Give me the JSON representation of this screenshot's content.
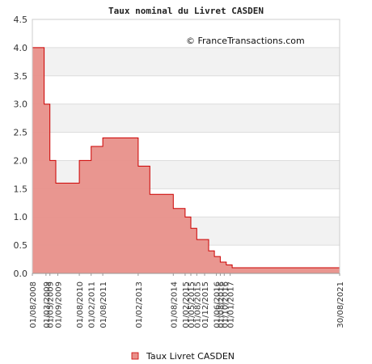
{
  "chart_data": {
    "type": "area",
    "step": true,
    "title": "Taux nominal du Livret CASDEN",
    "credit": "© FranceTransactions.com",
    "xlabel": "",
    "ylabel": "",
    "ylim": [
      0,
      4.5
    ],
    "yticks": [
      "0.0",
      "0.5",
      "1.0",
      "1.5",
      "2.0",
      "2.5",
      "3.0",
      "3.5",
      "4.0",
      "4.5"
    ],
    "grid": true,
    "legend_position": "bottom",
    "x": [
      "2008-08-01",
      "2009-02-01",
      "2009-05-01",
      "2009-08-01",
      "2010-08-01",
      "2011-02-01",
      "2011-08-01",
      "2013-02-01",
      "2013-08-01",
      "2014-08-01",
      "2015-02-01",
      "2015-05-01",
      "2015-08-01",
      "2016-02-01",
      "2016-05-01",
      "2016-08-01",
      "2016-11-01",
      "2017-02-01",
      "2021-08-30"
    ],
    "xtick_labels": [
      "01/08/2008",
      "01/03/2009",
      "01/05/2009",
      "01/09/2009",
      "01/08/2010",
      "01/02/2011",
      "01/08/2011",
      "01/02/2013",
      "01/08/2014",
      "01/02/2015",
      "01/05/2015",
      "01/08/2015",
      "01/12/2015",
      "01/06/2016",
      "01/08/2016",
      "01/10/2016",
      "01/01/2017",
      "30/08/2021"
    ],
    "xtick_dates": [
      "2008-08-01",
      "2009-03-01",
      "2009-05-01",
      "2009-09-01",
      "2010-08-01",
      "2011-02-01",
      "2011-08-01",
      "2013-02-01",
      "2014-08-01",
      "2015-02-01",
      "2015-05-01",
      "2015-08-01",
      "2015-12-01",
      "2016-06-01",
      "2016-08-01",
      "2016-10-01",
      "2017-01-01",
      "2021-08-30"
    ],
    "series": [
      {
        "name": "Taux Livret CASDEN",
        "values": [
          4.0,
          3.0,
          2.0,
          1.6,
          2.0,
          2.25,
          2.4,
          1.9,
          1.4,
          1.15,
          1.0,
          0.8,
          0.6,
          0.4,
          0.3,
          0.2,
          0.15,
          0.1,
          0.1
        ]
      }
    ],
    "colors": {
      "fill": "#e8908a",
      "line": "#cc0000",
      "band": "#f2f2f2",
      "axis": "#999999"
    }
  }
}
